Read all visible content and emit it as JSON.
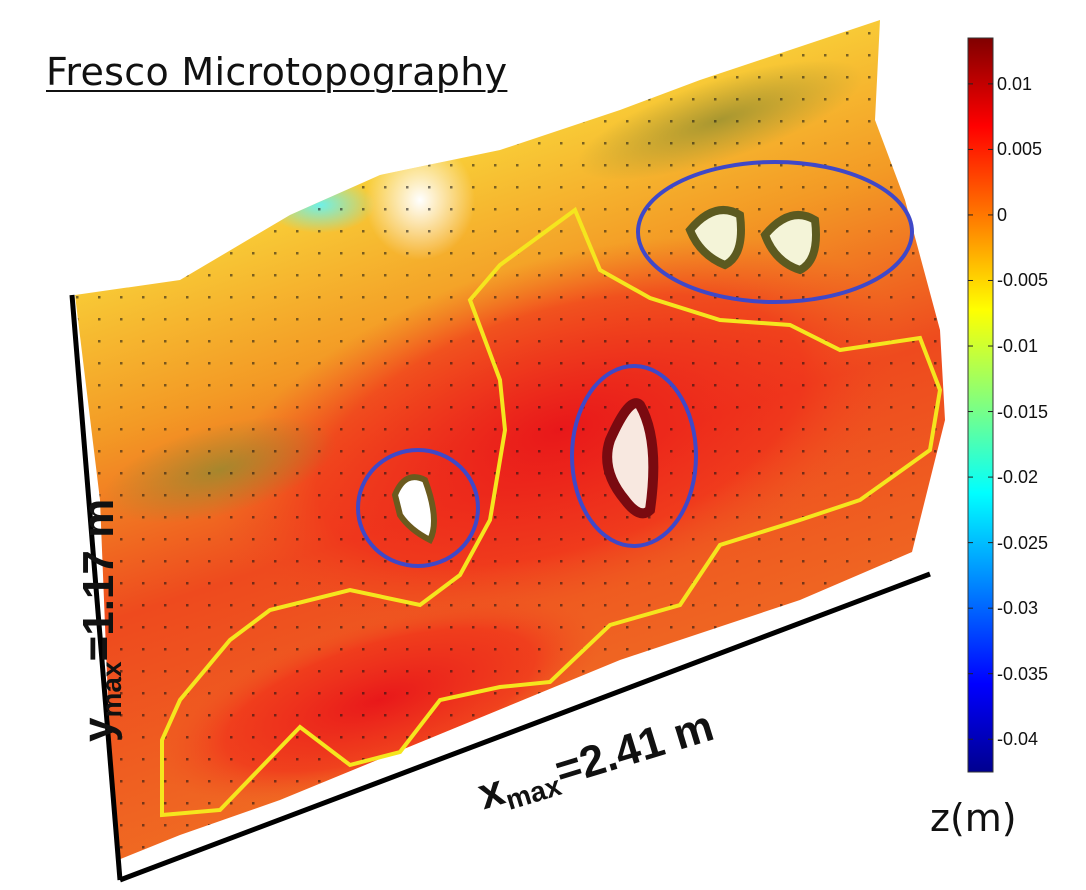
{
  "chart_data": {
    "type": "heatmap",
    "title": "Fresco Microtopography",
    "x_label": {
      "var": "x",
      "sub": "max",
      "rest": "=2.41 m"
    },
    "y_label": {
      "var": "y",
      "sub": "max",
      "rest": "=1.17 m"
    },
    "colorbar": {
      "label": "z(m)",
      "range": [
        -0.0425,
        0.0135
      ],
      "ticks": [
        0.01,
        0.005,
        0,
        -0.005,
        -0.01,
        -0.015,
        -0.02,
        -0.025,
        -0.03,
        -0.035,
        -0.04
      ],
      "tick_labels": [
        "0.01",
        "0.005",
        "0",
        "-0.005",
        "-0.01",
        "-0.015",
        "-0.02",
        "-0.025",
        "-0.03",
        "-0.035",
        "-0.04"
      ],
      "colormap": [
        "#00008f",
        "#0000ff",
        "#0080ff",
        "#00ffff",
        "#80ff80",
        "#ffff00",
        "#ff8000",
        "#ff0000",
        "#800000"
      ]
    },
    "annotations": {
      "outline_color": "#f5e61e",
      "circle_color": "#3f48c8",
      "circled_regions": 3
    }
  }
}
